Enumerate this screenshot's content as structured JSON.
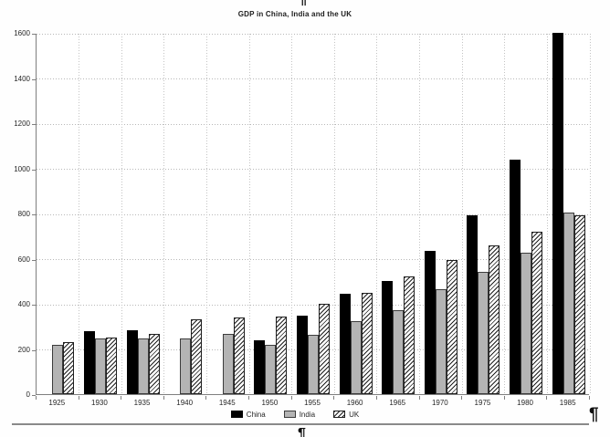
{
  "document": {
    "pilcrow_mark": "¶",
    "rule_color": "#8a8a8a",
    "background": "#ffffff"
  },
  "chart_data": {
    "type": "bar",
    "title": "GDP in China, India and the UK",
    "categories": [
      "1925",
      "1930",
      "1935",
      "1940",
      "1945",
      "1950",
      "1955",
      "1960",
      "1965",
      "1970",
      "1975",
      "1980",
      "1985"
    ],
    "series": [
      {
        "name": "China",
        "color": "#000000",
        "pattern": "solid",
        "values": [
          null,
          280,
          283,
          null,
          null,
          237,
          348,
          445,
          500,
          633,
          792,
          1040,
          1600
        ]
      },
      {
        "name": "India",
        "color": "#b4b4b4",
        "pattern": "solid",
        "values": [
          220,
          245,
          246,
          248,
          265,
          220,
          264,
          325,
          370,
          464,
          540,
          625,
          805
        ]
      },
      {
        "name": "UK",
        "color": "#ffffff",
        "pattern": "diagonal-hatch",
        "values": [
          230,
          252,
          268,
          331,
          340,
          344,
          400,
          450,
          520,
          593,
          660,
          721,
          792
        ]
      }
    ],
    "xlabel": "",
    "ylabel": "",
    "ylim": [
      0,
      1600
    ],
    "ytick_step": 200,
    "yticks": [
      0,
      200,
      400,
      600,
      800,
      1000,
      1200,
      1400,
      1600
    ],
    "grid": "dotted",
    "grid_color": "#b8b8b8",
    "axis_color": "#7f7f7f",
    "text_color": "#262626",
    "legend_position": "bottom"
  }
}
